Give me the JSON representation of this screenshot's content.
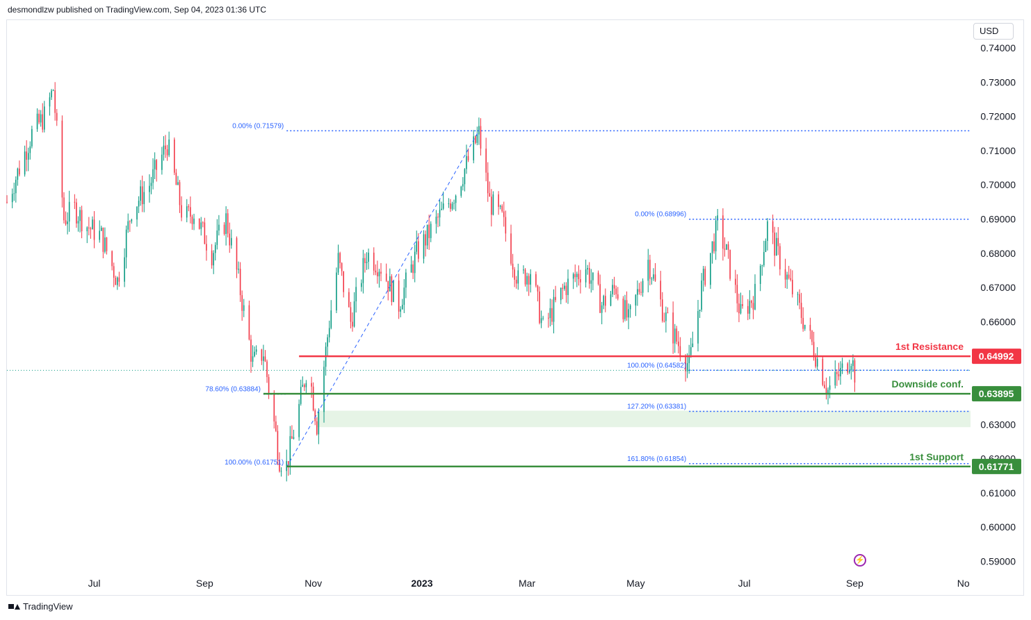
{
  "header": {
    "published": "desmondlzw published on TradingView.com, Sep 04, 2023 01:36 UTC"
  },
  "currency": "USD",
  "footer": {
    "brand": "TradingView"
  },
  "icons": {
    "logo": "tradingview-logo-icon",
    "flash": "lightning-icon"
  },
  "chart_data": {
    "type": "candlestick",
    "symbol_currency": "USD",
    "x_ticks": [
      {
        "label": "Jul",
        "date": "2022-07-01",
        "bold": false
      },
      {
        "label": "Sep",
        "date": "2022-09-01",
        "bold": false
      },
      {
        "label": "Nov",
        "date": "2022-11-01",
        "bold": false
      },
      {
        "label": "2023",
        "date": "2023-01-01",
        "bold": true
      },
      {
        "label": "Mar",
        "date": "2023-03-01",
        "bold": false
      },
      {
        "label": "May",
        "date": "2023-05-01",
        "bold": false
      },
      {
        "label": "Jul",
        "date": "2023-07-01",
        "bold": false
      },
      {
        "label": "Sep",
        "date": "2023-09-01",
        "bold": false
      },
      {
        "label": "No",
        "date": "2023-11-01",
        "bold": false
      }
    ],
    "x_range": [
      "2022-05-13",
      "2023-11-05"
    ],
    "y_ticks": [
      "0.74000",
      "0.73000",
      "0.72000",
      "0.71000",
      "0.70000",
      "0.69000",
      "0.68000",
      "0.67000",
      "0.66000",
      "0.65000",
      "0.64000",
      "0.63000",
      "0.62000",
      "0.61000",
      "0.60000",
      "0.59000"
    ],
    "ylim": [
      0.587,
      0.7415
    ],
    "colors": {
      "up": "#089981",
      "down": "#f23645",
      "resistance": "#f23645",
      "support": "#388e3c",
      "fib": "#2962ff",
      "fib_text": "#2962ff",
      "zone": "#e6f4e6"
    },
    "price_path": [
      [
        "2022-05-13",
        0.695
      ],
      [
        "2022-05-20",
        0.705
      ],
      [
        "2022-05-27",
        0.715
      ],
      [
        "2022-06-03",
        0.72
      ],
      [
        "2022-06-08",
        0.728
      ],
      [
        "2022-06-14",
        0.69
      ],
      [
        "2022-06-20",
        0.693
      ],
      [
        "2022-06-27",
        0.688
      ],
      [
        "2022-07-05",
        0.685
      ],
      [
        "2022-07-14",
        0.672
      ],
      [
        "2022-07-22",
        0.693
      ],
      [
        "2022-08-01",
        0.7
      ],
      [
        "2022-08-11",
        0.712
      ],
      [
        "2022-08-20",
        0.69
      ],
      [
        "2022-08-26",
        0.692
      ],
      [
        "2022-09-05",
        0.68
      ],
      [
        "2022-09-13",
        0.69
      ],
      [
        "2022-09-20",
        0.672
      ],
      [
        "2022-09-28",
        0.648
      ],
      [
        "2022-10-04",
        0.651
      ],
      [
        "2022-10-13",
        0.62
      ],
      [
        "2022-10-17",
        0.618
      ],
      [
        "2022-10-24",
        0.635
      ],
      [
        "2022-10-29",
        0.648
      ],
      [
        "2022-11-03",
        0.63
      ],
      [
        "2022-11-10",
        0.66
      ],
      [
        "2022-11-15",
        0.678
      ],
      [
        "2022-11-22",
        0.66
      ],
      [
        "2022-12-01",
        0.68
      ],
      [
        "2022-12-09",
        0.676
      ],
      [
        "2022-12-19",
        0.665
      ],
      [
        "2022-12-29",
        0.68
      ],
      [
        "2023-01-10",
        0.69
      ],
      [
        "2023-01-20",
        0.698
      ],
      [
        "2023-02-02",
        0.715
      ],
      [
        "2023-02-08",
        0.695
      ],
      [
        "2023-02-15",
        0.69
      ],
      [
        "2023-02-24",
        0.672
      ],
      [
        "2023-03-03",
        0.675
      ],
      [
        "2023-03-10",
        0.658
      ],
      [
        "2023-03-22",
        0.67
      ],
      [
        "2023-04-03",
        0.676
      ],
      [
        "2023-04-12",
        0.665
      ],
      [
        "2023-04-20",
        0.67
      ],
      [
        "2023-04-27",
        0.66
      ],
      [
        "2023-05-08",
        0.678
      ],
      [
        "2023-05-17",
        0.662
      ],
      [
        "2023-05-31",
        0.647
      ],
      [
        "2023-06-07",
        0.67
      ],
      [
        "2023-06-16",
        0.688
      ],
      [
        "2023-06-21",
        0.68
      ],
      [
        "2023-06-29",
        0.662
      ],
      [
        "2023-07-07",
        0.668
      ],
      [
        "2023-07-14",
        0.688
      ],
      [
        "2023-07-21",
        0.678
      ],
      [
        "2023-07-31",
        0.665
      ],
      [
        "2023-08-09",
        0.652
      ],
      [
        "2023-08-17",
        0.64
      ],
      [
        "2023-08-24",
        0.645
      ],
      [
        "2023-08-30",
        0.65
      ],
      [
        "2023-09-01",
        0.645
      ]
    ],
    "last_price": 0.6458,
    "horizontal_levels": [
      {
        "name": "1st Resistance",
        "value": 0.64992,
        "tag": "0.64992",
        "color": "#f23645",
        "from": "2022-10-24",
        "text_color": "#f23645"
      },
      {
        "name": "Downside conf.",
        "value": 0.63895,
        "tag": "0.63895",
        "color": "#388e3c",
        "from": "2022-10-04",
        "text_color": "#388e3c"
      },
      {
        "name": "1st Support",
        "value": 0.61771,
        "tag": "0.61771",
        "color": "#388e3c",
        "from": "2022-10-17",
        "text_color": "#388e3c"
      }
    ],
    "fib_lines": [
      {
        "label": "0.00% (0.71579)",
        "value": 0.71579,
        "from": "2022-10-17",
        "to": "2023-11-05",
        "label_side": "left"
      },
      {
        "label": "0.00% (0.68996)",
        "value": 0.68996,
        "from": "2023-05-31",
        "to": "2023-11-05",
        "label_side": "left"
      },
      {
        "label": "100.00% (0.64582)",
        "value": 0.64582,
        "from": "2023-05-31",
        "to": "2023-11-05",
        "label_side": "left"
      },
      {
        "label": "78.60% (0.63884)",
        "value": 0.63884,
        "from": "2022-10-04",
        "to": "2022-10-17",
        "label_side": "left"
      },
      {
        "label": "127.20% (0.63381)",
        "value": 0.63381,
        "from": "2023-05-31",
        "to": "2023-11-05",
        "label_side": "left"
      },
      {
        "label": "100.00% (0.61751)",
        "value": 0.61751,
        "from": "2022-10-17",
        "to": "2022-10-17",
        "label_side": "left"
      },
      {
        "label": "161.80% (0.61854)",
        "value": 0.61854,
        "from": "2023-05-31",
        "to": "2023-11-05",
        "label_side": "left"
      }
    ],
    "trend_line": {
      "from": [
        "2022-10-17",
        0.6175
      ],
      "to": [
        "2023-02-02",
        0.7158
      ]
    },
    "zone": {
      "from": "2022-11-03",
      "to": "2023-11-05",
      "top": 0.634,
      "bottom": 0.6292
    },
    "grid": false
  }
}
